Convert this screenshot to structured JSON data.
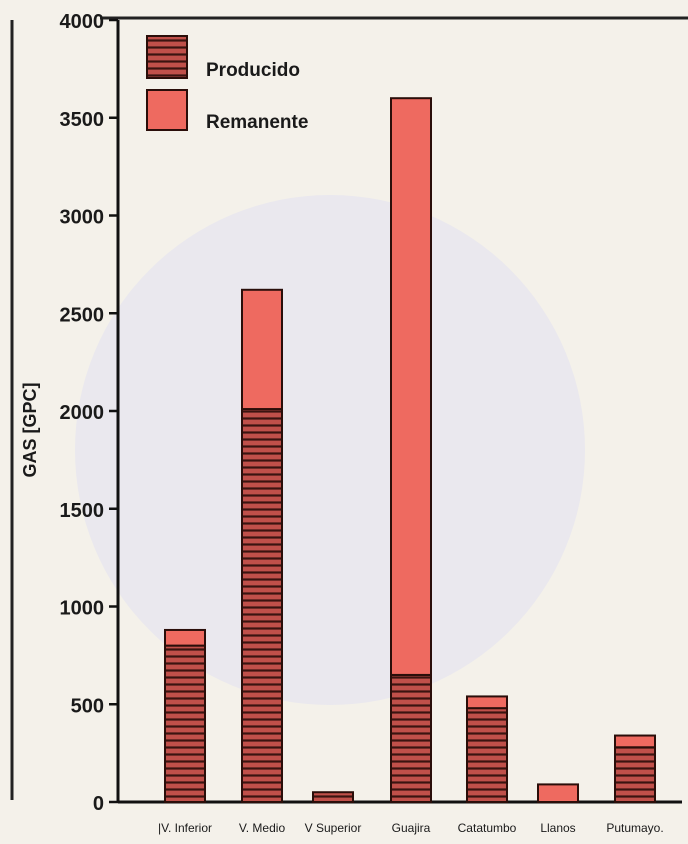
{
  "chart_data": {
    "type": "bar",
    "stacked": true,
    "ylabel": "GAS [GPC]",
    "ylim": [
      0,
      4000
    ],
    "yticks": [
      0,
      500,
      1000,
      1500,
      2000,
      2500,
      3000,
      3500,
      4000
    ],
    "categories": [
      "|V. Inferior",
      "V. Medio",
      "V Superior",
      "Guajira",
      "Catatumbo",
      "Llanos",
      "Putumayo."
    ],
    "series": [
      {
        "name": "Producido",
        "values": [
          800,
          2010,
          50,
          650,
          480,
          0,
          280
        ]
      },
      {
        "name": "Remanente",
        "values": [
          80,
          610,
          0,
          2950,
          60,
          90,
          60
        ]
      }
    ],
    "legend_position": "top-left",
    "colors": {
      "producido_fill": "#c0504a",
      "producido_stripe": "#3a1410",
      "remanente_fill": "#ee6a60",
      "outline": "#2a0e0a",
      "axis": "#111111"
    }
  }
}
